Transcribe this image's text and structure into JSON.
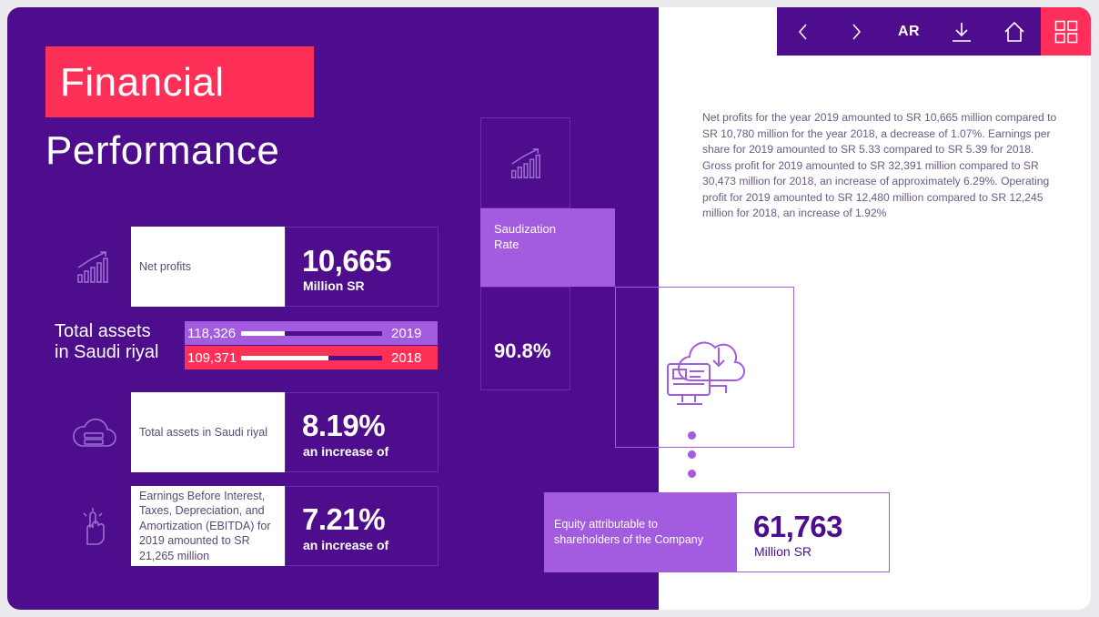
{
  "toolbar": {
    "prev_icon": "chevron-left-icon",
    "next_icon": "chevron-right-icon",
    "lang_label": "AR",
    "download_icon": "download-icon",
    "home_icon": "home-icon",
    "grid_icon": "grid-icon"
  },
  "title": {
    "line1": "Financial",
    "line2": "Performance"
  },
  "net_profits": {
    "label": "Net profits",
    "value": "10,665",
    "unit": "Million SR",
    "icon": "bar-chart-growth-icon"
  },
  "total_assets": {
    "label_line1": "Total assets",
    "label_line2": "in Saudi riyal",
    "bars": [
      {
        "value": "118,326",
        "year": "2019",
        "fill": 0.31,
        "color": "#a35be0"
      },
      {
        "value": "109,371",
        "year": "2018",
        "fill": 0.62,
        "color": "#ff3057"
      }
    ]
  },
  "assets_increase": {
    "label": "Total assets in Saudi riyal",
    "value": "8.19%",
    "sub": "an increase of",
    "icon": "cloud-server-icon"
  },
  "ebitda": {
    "label": "Earnings Before Interest, Taxes, Depreciation, and Amortization (EBITDA) for 2019 amounted to SR 21,265 million",
    "value": "7.21%",
    "sub": "an increase of",
    "icon": "touch-gesture-icon"
  },
  "saudization": {
    "label": "Saudization Rate",
    "value": "90.8%",
    "icon": "bar-chart-growth-icon"
  },
  "paragraph": "Net profits for the year 2019 amounted to SR 10,665 million compared to SR 10,780 million for the year 2018, a decrease of 1.07%. Earnings per share for 2019 amounted to SR 5.33 compared to SR 5.39 for 2018. Gross profit for 2019 amounted to SR 32,391 million compared to SR 30,473 million for 2018, an increase of approximately 6.29%. Operating profit for 2019 amounted to SR 12,480 million compared to SR 12,245 million for 2018, an increase of 1.92%",
  "cloud_illustration": "cloud-computer-download-icon",
  "equity": {
    "label": "Equity attributable to shareholders of the Company",
    "value": "61,763",
    "unit": "Million SR"
  },
  "colors": {
    "purple": "#4d0d8c",
    "light_purple": "#a35be0",
    "accent": "#ff3057"
  }
}
